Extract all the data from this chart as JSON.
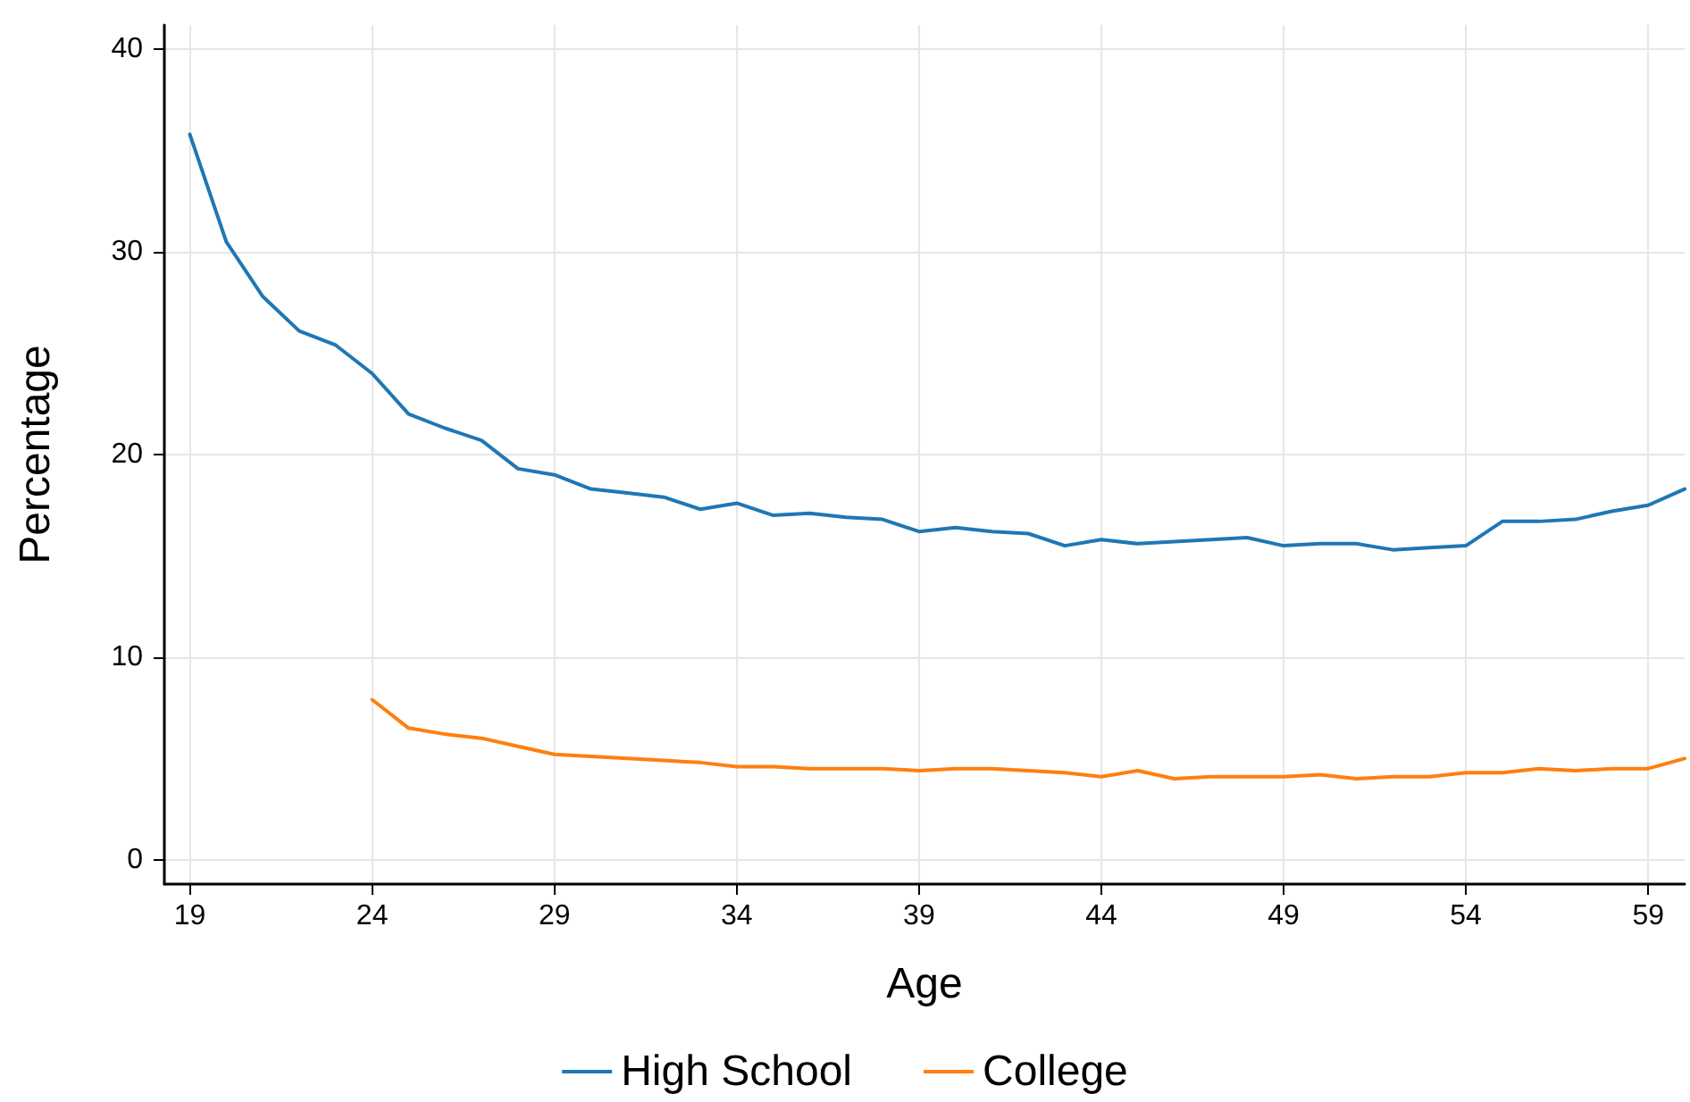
{
  "chart_data": {
    "type": "line",
    "xlabel": "Age",
    "ylabel": "Percentage",
    "x": [
      19,
      20,
      21,
      22,
      23,
      24,
      25,
      26,
      27,
      28,
      29,
      30,
      31,
      32,
      33,
      34,
      35,
      36,
      37,
      38,
      39,
      40,
      41,
      42,
      43,
      44,
      45,
      46,
      47,
      48,
      49,
      50,
      51,
      52,
      53,
      54,
      55,
      56,
      57,
      58,
      59,
      60
    ],
    "series": [
      {
        "name": "High School",
        "color": "#1f77b4",
        "values": [
          35.8,
          30.5,
          27.8,
          26.1,
          25.4,
          24.0,
          22.0,
          21.3,
          20.7,
          19.3,
          19.0,
          18.3,
          18.1,
          17.9,
          17.3,
          17.6,
          17.0,
          17.1,
          16.9,
          16.8,
          16.2,
          16.4,
          16.2,
          16.1,
          15.5,
          15.8,
          15.6,
          15.7,
          15.8,
          15.9,
          15.5,
          15.6,
          15.6,
          15.3,
          15.4,
          15.5,
          16.7,
          16.7,
          16.8,
          17.2,
          17.5,
          18.3
        ]
      },
      {
        "name": "College",
        "color": "#ff7f0e",
        "x": [
          24,
          25,
          26,
          27,
          28,
          29,
          30,
          31,
          32,
          33,
          34,
          35,
          36,
          37,
          38,
          39,
          40,
          41,
          42,
          43,
          44,
          45,
          46,
          47,
          48,
          49,
          50,
          51,
          52,
          53,
          54,
          55,
          56,
          57,
          58,
          59,
          60
        ],
        "values": [
          7.9,
          6.5,
          6.2,
          6.0,
          5.6,
          5.2,
          5.1,
          5.0,
          4.9,
          4.8,
          4.6,
          4.6,
          4.5,
          4.5,
          4.5,
          4.4,
          4.5,
          4.5,
          4.4,
          4.3,
          4.1,
          4.4,
          4.0,
          4.1,
          4.1,
          4.1,
          4.2,
          4.0,
          4.1,
          4.1,
          4.3,
          4.3,
          4.5,
          4.4,
          4.5,
          4.5,
          5.0
        ]
      }
    ],
    "xlim": [
      18.3,
      60
    ],
    "xticks": [
      19,
      24,
      29,
      34,
      39,
      44,
      49,
      54,
      59
    ],
    "ylim": [
      -1.2,
      41.2
    ],
    "yticks": [
      0,
      10,
      20,
      30,
      40
    ],
    "grid": true,
    "legend": "bottom",
    "marker": "none",
    "line_style": "solid"
  }
}
